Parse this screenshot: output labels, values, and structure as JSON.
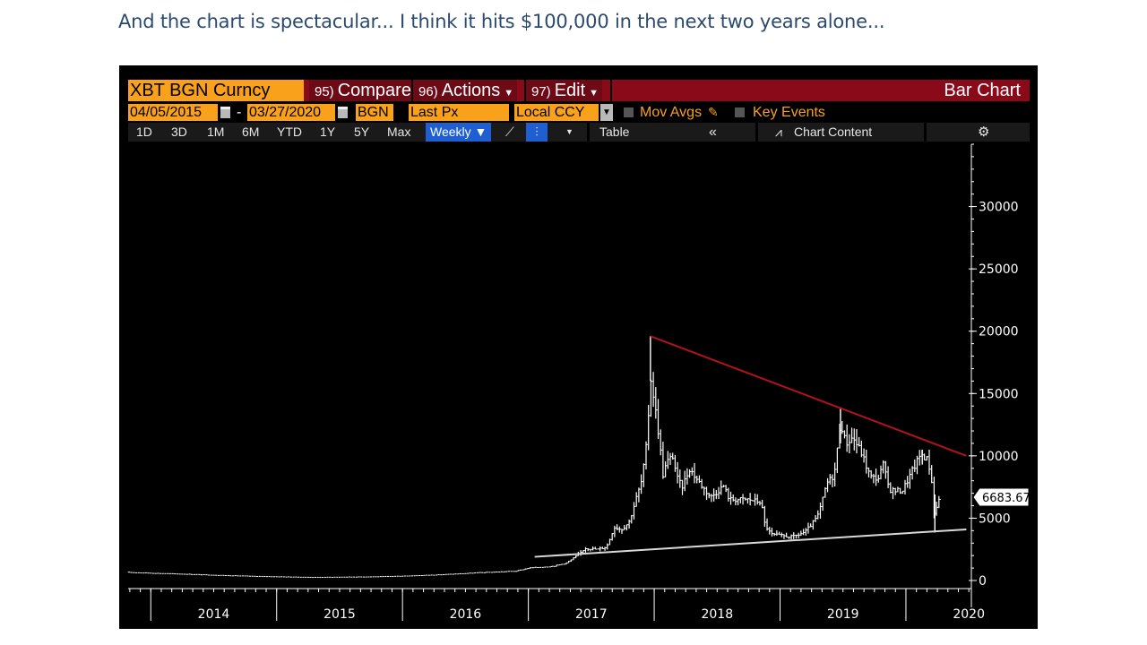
{
  "caption": "And the chart is spectacular... I think it hits $100,000 in the next two years alone...",
  "header": {
    "ticker": "XBT BGN Curncy",
    "compare": {
      "num": "95)",
      "label": "Compare"
    },
    "actions": {
      "num": "96)",
      "label": "Actions"
    },
    "edit": {
      "num": "97)",
      "label": "Edit"
    },
    "title": "Bar Chart"
  },
  "settings": {
    "start_date": "04/05/2015",
    "end_date": "03/27/2020",
    "dash": "-",
    "source": "BGN",
    "field": "Last Px",
    "currency": "Local CCY",
    "mov_avgs": "Mov Avgs",
    "key_events": "Key Events"
  },
  "toolbar": {
    "periods": [
      "1D",
      "3D",
      "1M",
      "6M",
      "YTD",
      "1Y",
      "5Y",
      "Max"
    ],
    "frequency": "Weekly ▼",
    "table": "Table",
    "collapse": "«",
    "chart_content": "Chart Content",
    "settings_icon": "gear-icon"
  },
  "colors": {
    "accent_orange": "#f9a11b",
    "header_red": "#8b0a1a",
    "resistance_line": "#b3121d",
    "support_line": "#d9d9d9",
    "price_bars": "#ffffff"
  },
  "chart_data": {
    "type": "bar",
    "title": "Bar Chart",
    "series_desc": "XBT BGN Curncy weekly high-low price bars",
    "x_range": [
      2013.82,
      2020.52
    ],
    "ylim": [
      0,
      35000
    ],
    "y_ticks": [
      0,
      5000,
      10000,
      15000,
      20000,
      25000,
      30000
    ],
    "x_labels": [
      "2014",
      "2015",
      "2016",
      "2017",
      "2018",
      "2019",
      "2020"
    ],
    "last_price": "6683.67",
    "key_points": [
      [
        2013.82,
        650
      ],
      [
        2014.3,
        500
      ],
      [
        2014.8,
        340
      ],
      [
        2015.3,
        250
      ],
      [
        2015.8,
        300
      ],
      [
        2016.2,
        420
      ],
      [
        2016.6,
        620
      ],
      [
        2016.9,
        750
      ],
      [
        2017.0,
        1000
      ],
      [
        2017.2,
        1150
      ],
      [
        2017.3,
        1400
      ],
      [
        2017.45,
        2600
      ],
      [
        2017.55,
        2500
      ],
      [
        2017.62,
        2700
      ],
      [
        2017.68,
        4300
      ],
      [
        2017.74,
        4100
      ],
      [
        2017.8,
        4700
      ],
      [
        2017.85,
        6400
      ],
      [
        2017.9,
        8000
      ],
      [
        2017.94,
        11000
      ],
      [
        2017.97,
        16500
      ],
      [
        2018.0,
        14500
      ],
      [
        2018.04,
        11500
      ],
      [
        2018.07,
        8500
      ],
      [
        2018.1,
        9500
      ],
      [
        2018.15,
        10000
      ],
      [
        2018.18,
        8300
      ],
      [
        2018.22,
        7500
      ],
      [
        2018.28,
        9000
      ],
      [
        2018.35,
        8000
      ],
      [
        2018.45,
        6700
      ],
      [
        2018.55,
        7600
      ],
      [
        2018.6,
        6500
      ],
      [
        2018.75,
        6500
      ],
      [
        2018.85,
        6300
      ],
      [
        2018.88,
        4500
      ],
      [
        2018.93,
        3700
      ],
      [
        2019.0,
        3600
      ],
      [
        2019.1,
        3500
      ],
      [
        2019.2,
        3900
      ],
      [
        2019.3,
        5200
      ],
      [
        2019.37,
        7800
      ],
      [
        2019.43,
        8500
      ],
      [
        2019.48,
        13000
      ],
      [
        2019.52,
        11000
      ],
      [
        2019.58,
        11500
      ],
      [
        2019.65,
        10200
      ],
      [
        2019.72,
        8300
      ],
      [
        2019.78,
        8200
      ],
      [
        2019.82,
        9300
      ],
      [
        2019.87,
        7300
      ],
      [
        2019.92,
        7200
      ],
      [
        2019.97,
        7200
      ],
      [
        2020.05,
        8800
      ],
      [
        2020.12,
        10200
      ],
      [
        2020.17,
        9700
      ],
      [
        2020.2,
        8600
      ],
      [
        2020.23,
        4900
      ],
      [
        2020.25,
        6400
      ],
      [
        2020.27,
        6683.67
      ]
    ],
    "trendlines": [
      {
        "name": "resistance",
        "from": [
          2017.97,
          19600
        ],
        "to": [
          2020.48,
          10000
        ]
      },
      {
        "name": "support",
        "from": [
          2017.05,
          1900
        ],
        "to": [
          2020.48,
          4100
        ]
      }
    ],
    "grid": false
  }
}
